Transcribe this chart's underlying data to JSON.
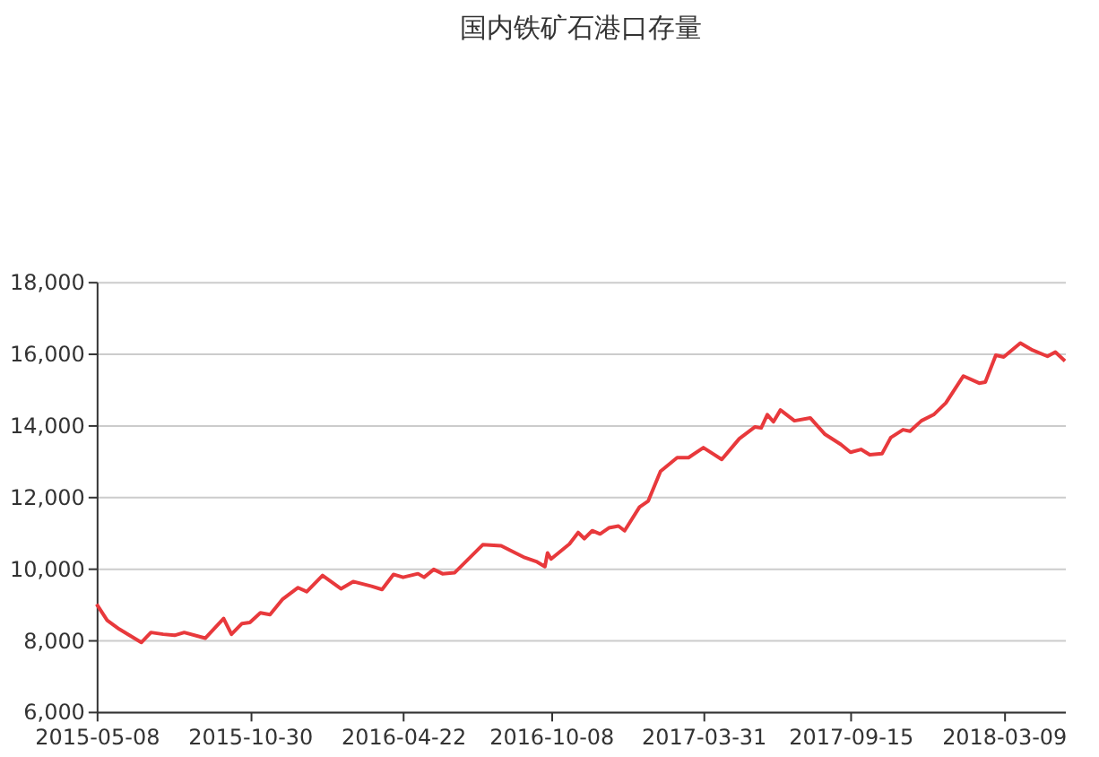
{
  "chart_data": {
    "type": "line",
    "title": "国内铁矿石港口存量",
    "x": [
      "2015-05-08",
      "2015-05-20",
      "2015-06-03",
      "2015-06-28",
      "2015-07-09",
      "2015-07-23",
      "2015-08-05",
      "2015-08-16",
      "2015-09-09",
      "2015-09-30",
      "2015-10-09",
      "2015-10-21",
      "2015-10-30",
      "2015-11-11",
      "2015-11-22",
      "2015-12-06",
      "2015-12-24",
      "2016-01-03",
      "2016-01-21",
      "2016-02-11",
      "2016-02-25",
      "2016-03-17",
      "2016-03-29",
      "2016-04-11",
      "2016-04-22",
      "2016-05-09",
      "2016-05-16",
      "2016-05-27",
      "2016-06-06",
      "2016-06-20",
      "2016-07-22",
      "2016-08-12",
      "2016-09-08",
      "2016-09-22",
      "2016-10-01",
      "2016-10-04",
      "2016-10-08",
      "2016-10-29",
      "2016-11-08",
      "2016-11-15",
      "2016-11-24",
      "2016-12-03",
      "2016-12-13",
      "2016-12-24",
      "2016-12-31",
      "2017-01-17",
      "2017-01-27",
      "2017-02-10",
      "2017-03-01",
      "2017-03-14",
      "2017-03-31",
      "2017-04-21",
      "2017-05-11",
      "2017-05-29",
      "2017-06-05",
      "2017-06-12",
      "2017-06-19",
      "2017-06-27",
      "2017-07-13",
      "2017-07-31",
      "2017-08-17",
      "2017-09-04",
      "2017-09-15",
      "2017-09-27",
      "2017-10-07",
      "2017-10-21",
      "2017-10-31",
      "2017-11-14",
      "2017-11-22",
      "2017-12-05",
      "2017-12-19",
      "2018-01-02",
      "2018-01-22",
      "2018-02-09",
      "2018-02-16",
      "2018-02-28",
      "2018-03-09",
      "2018-03-28",
      "2018-04-11",
      "2018-04-28",
      "2018-05-07",
      "2018-05-18"
    ],
    "series": [
      {
        "color": "#e8393c",
        "values": [
          9000,
          8550,
          8300,
          7930,
          8210,
          8160,
          8130,
          8210,
          8050,
          8600,
          8160,
          8460,
          8490,
          8760,
          8710,
          9130,
          9460,
          9350,
          9800,
          9430,
          9630,
          9500,
          9410,
          9830,
          9750,
          9850,
          9750,
          9970,
          9850,
          9880,
          10660,
          10630,
          10300,
          10180,
          10050,
          10430,
          10260,
          10680,
          11000,
          10830,
          11050,
          10960,
          11130,
          11180,
          11050,
          11710,
          11880,
          12710,
          13090,
          13090,
          13370,
          13040,
          13620,
          13950,
          13920,
          14290,
          14090,
          14420,
          14120,
          14200,
          13740,
          13460,
          13240,
          13320,
          13170,
          13200,
          13650,
          13870,
          13830,
          14120,
          14290,
          14620,
          15370,
          15170,
          15200,
          15950,
          15900,
          16290,
          16090,
          15920,
          16040,
          15790
        ]
      }
    ],
    "xlim": [
      "2015-05-08",
      "2018-05-18"
    ],
    "xticks": [
      "2015-05-08",
      "2015-10-30",
      "2016-04-22",
      "2016-10-08",
      "2017-03-31",
      "2017-09-15",
      "2018-03-09"
    ],
    "ylim": [
      6000,
      18000
    ],
    "yticks": [
      {
        "value": 6000,
        "label": "6,000"
      },
      {
        "value": 8000,
        "label": "8,000"
      },
      {
        "value": 10000,
        "label": "10,000"
      },
      {
        "value": 12000,
        "label": "12,000"
      },
      {
        "value": 14000,
        "label": "14,000"
      },
      {
        "value": 16000,
        "label": "16,000"
      },
      {
        "value": 18000,
        "label": "18,000"
      }
    ],
    "grid": "y",
    "legend": false,
    "marker": "none",
    "line_style": "solid"
  }
}
